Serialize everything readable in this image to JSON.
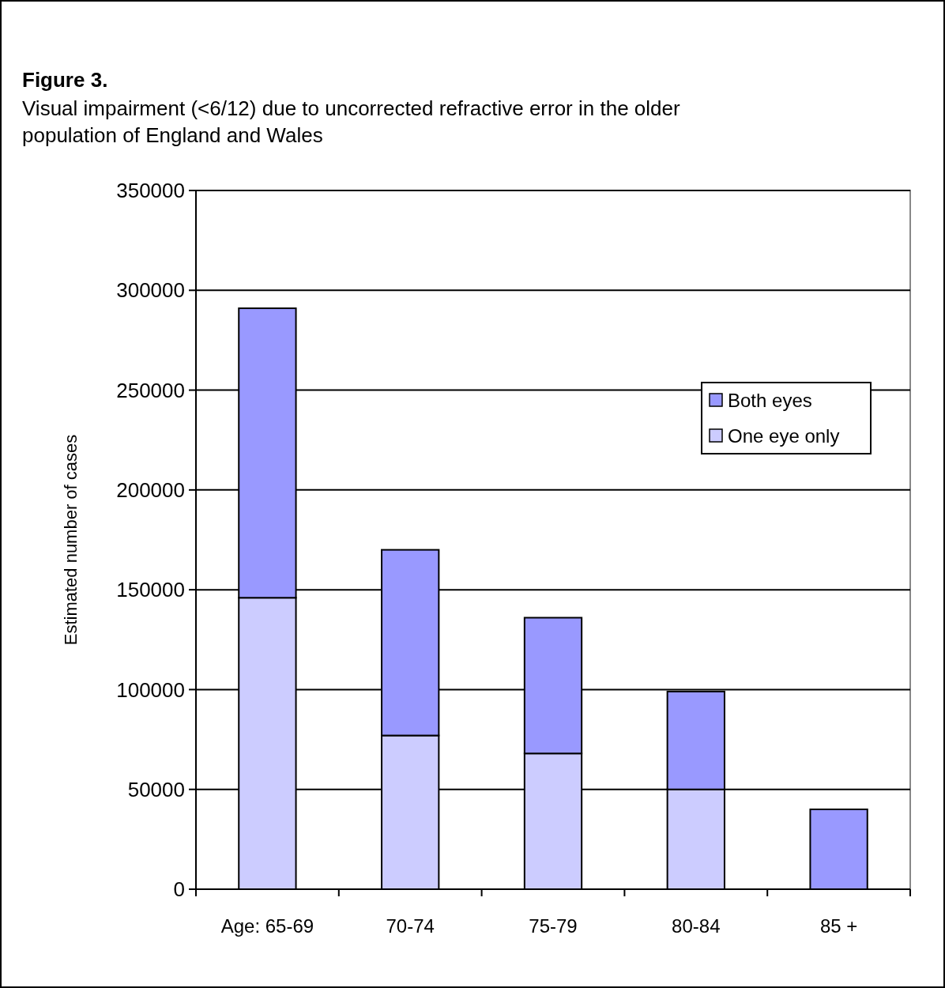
{
  "chart_data": {
    "type": "bar",
    "title": "Figure 3.",
    "subtitle": "Visual impairment (<6/12) due to uncorrected refractive error in the older population of England and Wales",
    "ylabel": "Estimated number of cases",
    "categories": [
      "Age: 65-69",
      "70-74",
      "75-79",
      "80-84",
      "85 +"
    ],
    "series": [
      {
        "name": "One eye only",
        "color": "#ccccff",
        "values": [
          146000,
          77000,
          68000,
          50000,
          0
        ]
      },
      {
        "name": "Both eyes",
        "color": "#9999ff",
        "values": [
          145000,
          93000,
          68000,
          49000,
          40000
        ]
      }
    ],
    "stacked": true,
    "ylim": [
      0,
      350000
    ],
    "yticks": [
      0,
      50000,
      100000,
      150000,
      200000,
      250000,
      300000,
      350000
    ],
    "grid": "y",
    "legend": "right"
  }
}
